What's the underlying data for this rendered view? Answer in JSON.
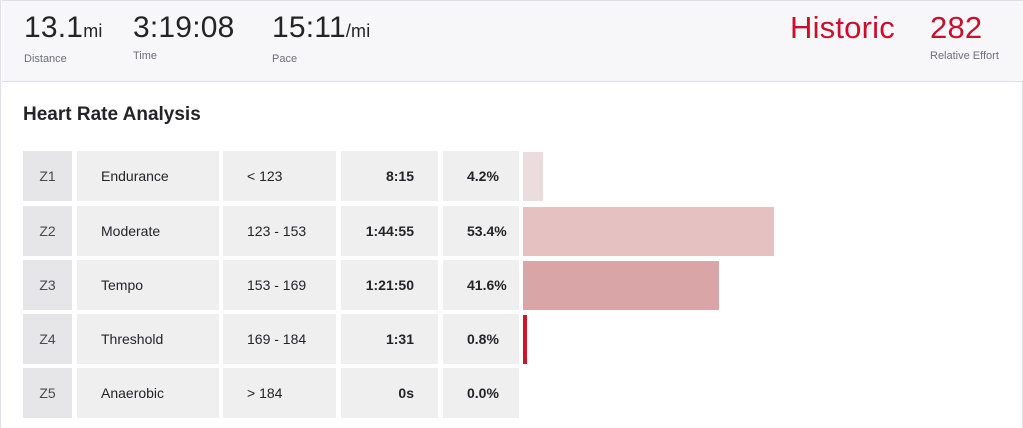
{
  "stats": {
    "distance": {
      "value": "13.1",
      "unit": "mi",
      "label": "Distance"
    },
    "time": {
      "value": "3:19:08",
      "label": "Time"
    },
    "pace": {
      "value": "15:11",
      "unit": "/mi",
      "label": "Pace"
    },
    "historic": "Historic",
    "relative_effort": {
      "value": "282",
      "label": "Relative Effort"
    }
  },
  "section_title": "Heart Rate Analysis",
  "zones": [
    {
      "zone": "Z1",
      "name": "Endurance",
      "range": "< 123",
      "time": "8:15",
      "percent": "4.2%",
      "fraction": 0.042,
      "color": "#ebdcde"
    },
    {
      "zone": "Z2",
      "name": "Moderate",
      "range": "123 - 153",
      "time": "1:44:55",
      "percent": "53.4%",
      "fraction": 0.534,
      "color": "#e6c1c2"
    },
    {
      "zone": "Z3",
      "name": "Tempo",
      "range": "153 - 169",
      "time": "1:21:50",
      "percent": "41.6%",
      "fraction": 0.416,
      "color": "#d9a5a7"
    },
    {
      "zone": "Z4",
      "name": "Threshold",
      "range": "169 - 184",
      "time": "1:31",
      "percent": "0.8%",
      "fraction": 0.008,
      "color": "#d0142c"
    },
    {
      "zone": "Z5",
      "name": "Anaerobic",
      "range": "> 184",
      "time": "0s",
      "percent": "0.0%",
      "fraction": 0.0,
      "color": "#c8102e"
    }
  ]
}
